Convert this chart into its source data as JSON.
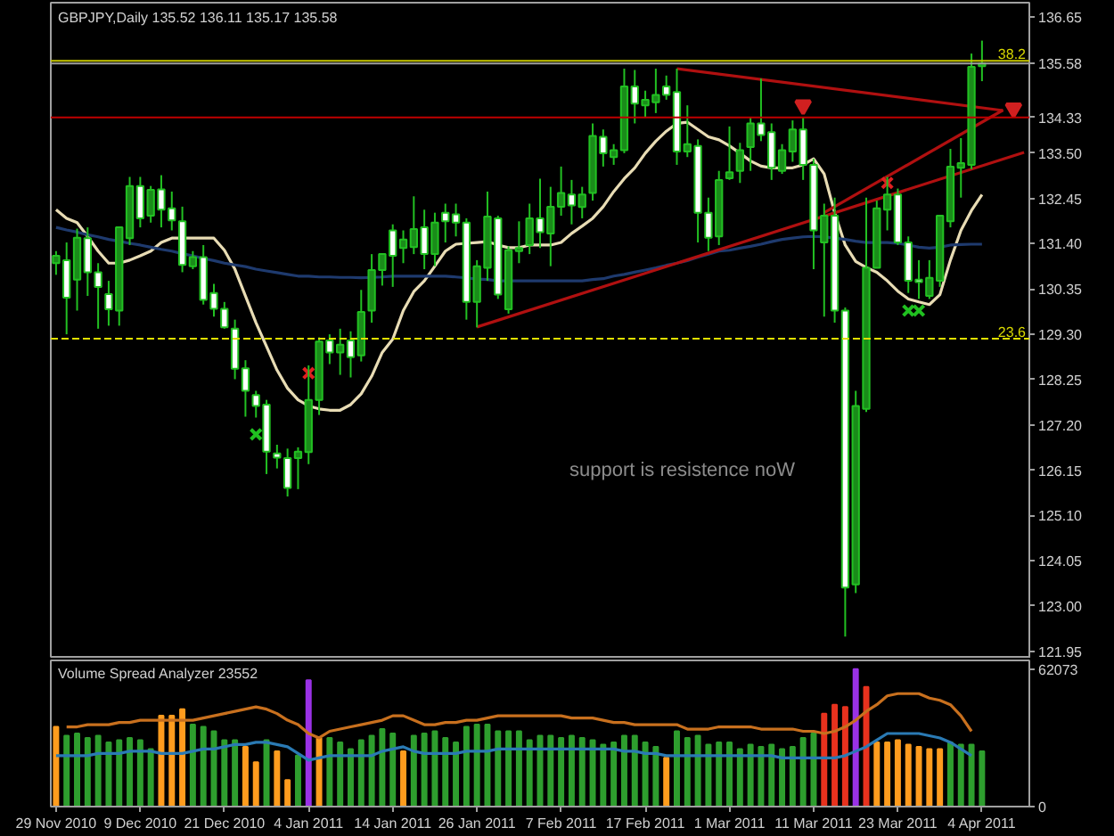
{
  "chart_data": [
    {
      "type": "candlestick",
      "title": "GBPJPY,Daily 135.52 136.11 135.17 135.58",
      "categories": [
        null,
        null,
        null,
        null,
        null,
        null,
        null,
        null,
        null,
        null,
        null,
        null,
        null,
        null,
        null,
        null,
        null,
        null,
        null,
        null,
        null,
        null,
        null,
        null,
        null,
        null,
        null,
        null,
        null,
        null,
        null,
        null,
        null,
        null,
        null,
        null,
        null,
        null,
        null,
        null,
        null,
        null,
        null,
        null,
        null,
        null,
        null,
        null,
        null,
        null,
        null,
        null,
        null,
        null,
        null,
        null,
        null,
        null,
        null,
        null,
        null,
        null,
        null,
        null,
        null,
        null,
        null,
        null,
        null,
        null,
        null,
        null,
        null,
        null,
        null,
        null,
        null,
        null,
        null,
        null,
        null,
        null,
        null,
        null,
        null,
        null,
        null,
        null,
        null,
        null,
        null,
        null,
        null
      ],
      "ohlc": [
        [
          130.95,
          131.23,
          130.68,
          131.12
        ],
        [
          131.02,
          131.43,
          129.3,
          130.15
        ],
        [
          130.57,
          131.75,
          129.85,
          131.54
        ],
        [
          131.53,
          131.78,
          130.19,
          130.74
        ],
        [
          130.74,
          130.95,
          129.43,
          130.4
        ],
        [
          130.23,
          130.54,
          129.5,
          129.88
        ],
        [
          129.85,
          131.78,
          129.5,
          131.78
        ],
        [
          131.53,
          132.95,
          131.37,
          132.74
        ],
        [
          132.74,
          132.95,
          131.78,
          131.99
        ],
        [
          132.05,
          132.74,
          131.89,
          132.65
        ],
        [
          132.66,
          132.99,
          131.78,
          132.19
        ],
        [
          132.22,
          132.61,
          131.71,
          131.94
        ],
        [
          131.92,
          132.26,
          130.74,
          130.91
        ],
        [
          130.88,
          131.23,
          130.81,
          131.09
        ],
        [
          131.09,
          131.37,
          129.99,
          130.1
        ],
        [
          130.26,
          130.47,
          129.71,
          129.89
        ],
        [
          129.89,
          130.05,
          129.43,
          129.46
        ],
        [
          129.43,
          129.64,
          128.26,
          128.5
        ],
        [
          128.51,
          128.7,
          127.39,
          127.99
        ],
        [
          127.89,
          127.99,
          127.37,
          127.64
        ],
        [
          127.67,
          127.78,
          126.06,
          126.58
        ],
        [
          126.54,
          126.74,
          126.19,
          126.44
        ],
        [
          126.43,
          126.65,
          125.54,
          125.74
        ],
        [
          126.43,
          126.68,
          125.71,
          126.58
        ],
        [
          126.57,
          128.58,
          126.29,
          127.78
        ],
        [
          127.78,
          129.23,
          127.43,
          129.13
        ],
        [
          129.16,
          129.3,
          128.61,
          128.88
        ],
        [
          128.88,
          129.43,
          128.36,
          129.06
        ],
        [
          129.16,
          129.37,
          128.3,
          128.77
        ],
        [
          128.81,
          130.33,
          128.67,
          129.82
        ],
        [
          129.85,
          131.16,
          129.57,
          130.79
        ],
        [
          130.79,
          131.16,
          130.43,
          131.16
        ],
        [
          131.71,
          131.85,
          130.4,
          131.12
        ],
        [
          131.3,
          131.71,
          130.95,
          131.5
        ],
        [
          131.32,
          132.5,
          131.16,
          131.74
        ],
        [
          131.78,
          132.19,
          130.81,
          131.16
        ],
        [
          131.16,
          132.12,
          130.88,
          131.89
        ],
        [
          132.12,
          132.33,
          131.43,
          131.92
        ],
        [
          132.08,
          132.33,
          131.57,
          131.89
        ],
        [
          131.89,
          131.99,
          129.64,
          130.05
        ],
        [
          130.05,
          131.02,
          129.46,
          130.88
        ],
        [
          130.84,
          132.61,
          130.54,
          132.03
        ],
        [
          131.99,
          132.05,
          130.12,
          130.22
        ],
        [
          129.88,
          131.34,
          129.78,
          131.25
        ],
        [
          131.23,
          131.92,
          130.95,
          131.3
        ],
        [
          131.37,
          132.33,
          131.16,
          131.99
        ],
        [
          131.99,
          132.91,
          131.3,
          131.67
        ],
        [
          131.64,
          132.72,
          130.88,
          132.26
        ],
        [
          132.26,
          133.19,
          132.05,
          132.58
        ],
        [
          132.54,
          132.88,
          131.85,
          132.29
        ],
        [
          132.25,
          132.72,
          131.99,
          132.54
        ],
        [
          132.58,
          134.19,
          132.4,
          133.9
        ],
        [
          133.88,
          134.05,
          133.19,
          133.5
        ],
        [
          133.41,
          133.71,
          133.23,
          133.57
        ],
        [
          133.57,
          135.46,
          133.5,
          135.05
        ],
        [
          135.05,
          135.43,
          134.19,
          134.65
        ],
        [
          134.61,
          134.95,
          134.33,
          134.74
        ],
        [
          134.68,
          135.46,
          134.43,
          134.85
        ],
        [
          135.05,
          135.3,
          134.74,
          134.85
        ],
        [
          134.92,
          135.46,
          133.23,
          133.54
        ],
        [
          133.54,
          134.61,
          133.41,
          133.71
        ],
        [
          133.67,
          133.82,
          131.43,
          132.12
        ],
        [
          132.12,
          132.47,
          131.23,
          131.54
        ],
        [
          131.57,
          133.09,
          131.37,
          132.88
        ],
        [
          132.92,
          134.12,
          132.88,
          133.06
        ],
        [
          133.09,
          133.74,
          132.81,
          133.57
        ],
        [
          133.64,
          134.33,
          133.09,
          134.19
        ],
        [
          134.19,
          135.23,
          133.78,
          133.92
        ],
        [
          133.99,
          134.19,
          132.88,
          133.16
        ],
        [
          133.09,
          133.71,
          133.02,
          133.57
        ],
        [
          133.54,
          134.26,
          133.3,
          134.05
        ],
        [
          134.05,
          134.33,
          132.88,
          133.23
        ],
        [
          133.23,
          133.37,
          130.81,
          131.71
        ],
        [
          131.43,
          132.33,
          129.71,
          132.05
        ],
        [
          132.05,
          132.47,
          129.57,
          129.85
        ],
        [
          129.85,
          129.92,
          122.29,
          123.43
        ],
        [
          123.5,
          127.99,
          123.3,
          127.64
        ],
        [
          127.57,
          132.47,
          127.5,
          130.84
        ],
        [
          130.84,
          132.4,
          130.84,
          132.22
        ],
        [
          132.19,
          132.95,
          131.71,
          132.54
        ],
        [
          132.54,
          132.68,
          131.37,
          131.43
        ],
        [
          131.43,
          131.57,
          130.26,
          130.54
        ],
        [
          130.57,
          131.02,
          130.12,
          130.51
        ],
        [
          130.19,
          131.02,
          130.12,
          130.61
        ],
        [
          130.54,
          132.05,
          130.4,
          132.05
        ],
        [
          131.92,
          133.6,
          131.78,
          133.19
        ],
        [
          133.16,
          133.85,
          132.47,
          133.27
        ],
        [
          133.23,
          135.81,
          133.13,
          135.5
        ],
        [
          135.52,
          136.11,
          135.17,
          135.58
        ],
        null,
        null,
        null,
        null
      ],
      "colors": [
        "#1a8c1a",
        "#ffffff",
        "#1a8c1a",
        "#ffffff",
        "#ffffff",
        "#ffffff",
        "#1a8c1a",
        "#1a8c1a",
        "#ffffff",
        "#1a8c1a",
        "#ffffff",
        "#ffffff",
        "#ffffff",
        "#1a8c1a",
        "#ffffff",
        "#ffffff",
        "#ffffff",
        "#ffffff",
        "#ffffff",
        "#ffffff",
        "#ffffff",
        "#ffffff",
        "#ffffff",
        "#1a8c1a",
        "#1a8c1a",
        "#1a8c1a",
        "#ffffff",
        "#1a8c1a",
        "#ffffff",
        "#1a8c1a",
        "#1a8c1a",
        "#1a8c1a",
        "#ffffff",
        "#1a8c1a",
        "#1a8c1a",
        "#ffffff",
        "#1a8c1a",
        "#ffffff",
        "#ffffff",
        "#ffffff",
        "#1a8c1a",
        "#1a8c1a",
        "#ffffff",
        "#1a8c1a",
        "#1a8c1a",
        "#1a8c1a",
        "#ffffff",
        "#1a8c1a",
        "#1a8c1a",
        "#ffffff",
        "#1a8c1a",
        "#1a8c1a",
        "#ffffff",
        "#1a8c1a",
        "#1a8c1a",
        "#ffffff",
        "#1a8c1a",
        "#1a8c1a",
        "#ffffff",
        "#ffffff",
        "#1a8c1a",
        "#ffffff",
        "#ffffff",
        "#1a8c1a",
        "#1a8c1a",
        "#1a8c1a",
        "#1a8c1a",
        "#ffffff",
        "#ffffff",
        "#1a8c1a",
        "#1a8c1a",
        "#ffffff",
        "#ffffff",
        "#1a8c1a",
        "#ffffff",
        "#ffffff",
        "#1a8c1a",
        "#1a8c1a",
        "#1a8c1a",
        "#1a8c1a",
        "#ffffff",
        "#ffffff",
        "#ffffff",
        "#1a8c1a",
        "#1a8c1a",
        "#1a8c1a",
        "#1a8c1a",
        "#1a8c1a",
        "#1a8c1a",
        null,
        null,
        null,
        null
      ],
      "series": [
        {
          "type": "line",
          "color": "#e8dcb4",
          "values": [
            132.19,
            131.99,
            131.89,
            131.57,
            131.23,
            130.95,
            130.95,
            131.02,
            131.12,
            131.23,
            131.43,
            131.53,
            131.53,
            131.53,
            131.53,
            131.53,
            131.25,
            130.81,
            130.19,
            129.57,
            129.02,
            128.47,
            128.05,
            127.78,
            127.64,
            127.57,
            127.54,
            127.54,
            127.67,
            127.92,
            128.33,
            128.88,
            129.19,
            129.85,
            130.29,
            130.54,
            130.88,
            131.23,
            131.39,
            131.41,
            131.43,
            131.45,
            131.37,
            131.31,
            131.31,
            131.37,
            131.37,
            131.37,
            131.43,
            131.64,
            131.81,
            131.99,
            132.26,
            132.61,
            132.91,
            133.16,
            133.5,
            133.78,
            134.01,
            134.19,
            134.22,
            134.05,
            133.88,
            133.81,
            133.67,
            133.5,
            133.32,
            133.2,
            133.16,
            133.16,
            133.16,
            133.23,
            133.37,
            133.02,
            132.12,
            131.37,
            130.99,
            130.85,
            130.74,
            130.54,
            130.3,
            130.12,
            130.05,
            129.99,
            130.22,
            131.02,
            131.71,
            132.17,
            132.54,
            null,
            null,
            null,
            null
          ]
        },
        {
          "type": "line",
          "color": "#1e3a6e",
          "values": [
            131.78,
            131.72,
            131.67,
            131.61,
            131.56,
            131.5,
            131.46,
            131.41,
            131.37,
            131.32,
            131.27,
            131.23,
            131.17,
            131.12,
            131.06,
            131.01,
            130.95,
            130.91,
            130.87,
            130.81,
            130.77,
            130.73,
            130.69,
            130.65,
            130.65,
            130.63,
            130.63,
            130.62,
            130.62,
            130.61,
            130.62,
            130.63,
            130.65,
            130.65,
            130.65,
            130.65,
            130.65,
            130.65,
            130.63,
            130.61,
            130.58,
            130.57,
            130.54,
            130.54,
            130.54,
            130.54,
            130.54,
            130.54,
            130.54,
            130.54,
            130.54,
            130.57,
            130.59,
            130.65,
            130.69,
            130.74,
            130.79,
            130.84,
            130.9,
            130.95,
            131.01,
            131.09,
            131.16,
            131.23,
            131.25,
            131.3,
            131.34,
            131.39,
            131.45,
            131.5,
            131.53,
            131.56,
            131.57,
            131.56,
            131.53,
            131.5,
            131.46,
            131.43,
            131.43,
            131.43,
            131.41,
            131.37,
            131.32,
            131.3,
            131.32,
            131.37,
            131.38,
            131.39,
            131.39,
            null,
            null,
            null,
            null
          ]
        },
        {
          "type": "line",
          "color": "#b01010",
          "values": [
            null,
            null,
            null,
            null,
            null,
            null,
            null,
            null,
            null,
            null,
            null,
            null,
            null,
            null,
            null,
            null,
            null,
            null,
            null,
            null,
            null,
            null,
            null,
            null,
            null,
            null,
            null,
            null,
            null,
            null,
            null,
            null,
            null,
            null,
            null,
            null,
            null,
            null,
            null,
            null,
            129.47,
            null,
            null,
            null,
            null,
            null,
            null,
            null,
            null,
            null,
            null,
            null,
            null,
            null,
            null,
            null,
            null,
            null,
            null,
            null,
            null,
            null,
            null,
            null,
            null,
            null,
            null,
            null,
            null,
            null,
            null,
            null,
            null,
            null,
            null,
            null,
            null,
            null,
            null,
            null,
            null,
            null,
            null,
            null,
            null,
            null,
            null,
            null,
            null,
            null,
            null,
            null,
            133.52
          ]
        },
        {
          "type": "line",
          "color": "#b01010",
          "values": [
            null,
            null,
            null,
            null,
            null,
            null,
            null,
            null,
            null,
            null,
            null,
            null,
            null,
            null,
            null,
            null,
            null,
            null,
            null,
            null,
            null,
            null,
            null,
            null,
            null,
            null,
            null,
            null,
            null,
            null,
            null,
            null,
            null,
            null,
            null,
            null,
            null,
            null,
            null,
            null,
            null,
            null,
            null,
            null,
            null,
            null,
            null,
            null,
            null,
            null,
            null,
            null,
            null,
            null,
            null,
            null,
            null,
            null,
            null,
            135.46,
            null,
            null,
            null,
            null,
            null,
            null,
            null,
            null,
            null,
            null,
            null,
            null,
            null,
            null,
            null,
            null,
            null,
            null,
            null,
            null,
            null,
            null,
            null,
            null,
            null,
            null,
            null,
            null,
            null,
            null,
            134.49,
            null,
            null
          ]
        },
        {
          "type": "line",
          "color": "#b01010",
          "values": [
            null,
            null,
            null,
            null,
            null,
            null,
            null,
            null,
            null,
            null,
            null,
            null,
            null,
            null,
            null,
            null,
            null,
            null,
            null,
            null,
            null,
            null,
            null,
            null,
            null,
            null,
            null,
            null,
            null,
            null,
            null,
            null,
            null,
            null,
            null,
            null,
            null,
            null,
            null,
            null,
            null,
            null,
            null,
            null,
            null,
            null,
            null,
            null,
            null,
            null,
            null,
            null,
            null,
            null,
            null,
            null,
            null,
            null,
            null,
            null,
            null,
            null,
            null,
            null,
            null,
            null,
            null,
            null,
            null,
            null,
            null,
            null,
            null,
            132.12,
            null,
            null,
            null,
            null,
            null,
            null,
            null,
            null,
            null,
            null,
            null,
            null,
            null,
            null,
            null,
            null,
            134.5,
            null,
            null
          ]
        },
        {
          "type": "scatter",
          "marker": "cross",
          "color": "#e02020",
          "values": [
            null,
            null,
            null,
            null,
            null,
            null,
            null,
            null,
            null,
            null,
            null,
            null,
            null,
            null,
            null,
            null,
            null,
            null,
            null,
            null,
            null,
            null,
            null,
            null,
            128.4,
            null,
            null,
            null,
            null,
            null,
            null,
            null,
            null,
            null,
            null,
            null,
            null,
            null,
            null,
            null,
            null,
            null,
            null,
            null,
            null,
            null,
            null,
            null,
            null,
            null,
            null,
            null,
            null,
            null,
            null,
            null,
            null,
            null,
            null,
            null,
            null,
            null,
            null,
            null,
            null,
            null,
            null,
            null,
            null,
            null,
            null,
            null,
            null,
            null,
            null,
            null,
            null,
            null,
            null,
            132.81,
            null,
            null,
            null,
            null,
            null,
            null,
            null,
            null,
            null,
            null,
            null,
            null,
            null
          ]
        },
        {
          "type": "scatter",
          "marker": "cross",
          "color": "#20c020",
          "values": [
            null,
            null,
            null,
            null,
            null,
            null,
            null,
            null,
            null,
            null,
            null,
            null,
            null,
            null,
            null,
            null,
            null,
            null,
            null,
            126.98,
            null,
            null,
            null,
            null,
            null,
            null,
            null,
            null,
            null,
            null,
            null,
            null,
            null,
            null,
            null,
            null,
            null,
            null,
            null,
            null,
            null,
            null,
            null,
            null,
            null,
            null,
            null,
            null,
            null,
            null,
            null,
            null,
            null,
            null,
            null,
            null,
            null,
            null,
            null,
            null,
            null,
            null,
            null,
            null,
            null,
            null,
            null,
            null,
            null,
            null,
            null,
            null,
            null,
            null,
            null,
            null,
            null,
            null,
            null,
            null,
            null,
            129.85,
            129.85,
            null,
            null,
            null,
            null,
            null,
            null,
            null,
            null,
            null,
            null
          ]
        },
        {
          "type": "scatter",
          "marker": "triangle",
          "color": "#d02020",
          "values": [
            null,
            null,
            null,
            null,
            null,
            null,
            null,
            null,
            null,
            null,
            null,
            null,
            null,
            null,
            null,
            null,
            null,
            null,
            null,
            null,
            null,
            null,
            null,
            null,
            null,
            null,
            null,
            null,
            null,
            null,
            null,
            null,
            null,
            null,
            null,
            null,
            null,
            null,
            null,
            null,
            null,
            null,
            null,
            null,
            null,
            null,
            null,
            null,
            null,
            null,
            null,
            null,
            null,
            null,
            null,
            null,
            null,
            null,
            null,
            null,
            null,
            null,
            null,
            null,
            null,
            null,
            null,
            null,
            null,
            null,
            null,
            134.61,
            null,
            null,
            null,
            null,
            null,
            null,
            null,
            null,
            null,
            null,
            null,
            null,
            null,
            null,
            null,
            null,
            null,
            null,
            null,
            134.54,
            null
          ]
        }
      ],
      "ref_lines": [
        {
          "axis": "y",
          "value": 135.64,
          "color": "#c8c800"
        },
        {
          "axis": "y",
          "value": 135.58,
          "label": "135.58",
          "color": "#a0a0a0"
        },
        {
          "axis": "y",
          "value": 134.33,
          "label": "134.33",
          "color": "#c00000"
        },
        {
          "axis": "y",
          "value": 129.2,
          "color": "#e0e000",
          "line_style": "dashed"
        }
      ],
      "annotations": [
        "support is resistence noW",
        {
          "text": "38.2",
          "y": 135.64
        },
        {
          "text": "23.6",
          "y": 129.2
        }
      ],
      "ylim": [
        121.78,
        136.99
      ],
      "yticks": [
        121.95,
        {
          "value": 123,
          "label": "123.00"
        },
        124.05,
        {
          "value": 125.1,
          "label": "125.10"
        },
        126.15,
        {
          "value": 127.2,
          "label": "127.20"
        },
        128.25,
        {
          "value": 129.3,
          "label": "129.30"
        },
        130.35,
        {
          "value": 131.4,
          "label": "131.40"
        },
        132.45,
        {
          "value": 133.5,
          "label": "133.50"
        },
        136.65
      ]
    },
    {
      "type": "bar",
      "title": "Volume Spread Analyzer 23552",
      "categories": [
        "29 Nov 2010",
        null,
        null,
        null,
        null,
        null,
        null,
        null,
        "9 Dec 2010",
        null,
        null,
        null,
        null,
        null,
        null,
        null,
        "21 Dec 2010",
        null,
        null,
        null,
        null,
        null,
        null,
        null,
        "4 Jan 2011",
        null,
        null,
        null,
        null,
        null,
        null,
        null,
        "14 Jan 2011",
        null,
        null,
        null,
        null,
        null,
        null,
        null,
        "26 Jan 2011",
        null,
        null,
        null,
        null,
        null,
        null,
        null,
        "7 Feb 2011",
        null,
        null,
        null,
        null,
        null,
        null,
        null,
        "17 Feb 2011",
        null,
        null,
        null,
        null,
        null,
        null,
        null,
        "1 Mar 2011",
        null,
        null,
        null,
        null,
        null,
        null,
        null,
        "11 Mar 2011",
        null,
        null,
        null,
        null,
        null,
        null,
        null,
        "23 Mar 2011",
        null,
        null,
        null,
        null,
        null,
        null,
        null,
        "4 Apr 2011",
        null,
        null,
        null,
        null
      ],
      "series": [
        {
          "type": "bar",
          "values": [
            36000,
            32000,
            33000,
            31000,
            32000,
            29000,
            30000,
            31000,
            30000,
            26000,
            41000,
            41000,
            44000,
            37000,
            36000,
            34000,
            30000,
            30000,
            27000,
            20000,
            30000,
            25000,
            12000,
            23000,
            57000,
            31000,
            31000,
            29000,
            26000,
            30000,
            32000,
            35000,
            33000,
            25000,
            32000,
            33000,
            34000,
            31000,
            29000,
            36000,
            37000,
            37000,
            34000,
            34000,
            34000,
            30000,
            32000,
            32000,
            31000,
            32000,
            31000,
            30000,
            28000,
            29000,
            32000,
            32000,
            29000,
            27000,
            22000,
            34000,
            31000,
            32000,
            28000,
            29000,
            29000,
            26000,
            28000,
            27000,
            28000,
            26000,
            27000,
            31000,
            33000,
            42000,
            46000,
            45000,
            62073,
            54000,
            29000,
            29000,
            30000,
            28000,
            27000,
            26000,
            26000,
            29000,
            28000,
            28000,
            25000,
            null,
            null,
            null,
            null
          ],
          "colors": [
            "#ff9c1e",
            "#2e9e2e",
            "#2e9e2e",
            "#2e9e2e",
            "#2e9e2e",
            "#2e9e2e",
            "#2e9e2e",
            "#2e9e2e",
            "#2e9e2e",
            "#2e9e2e",
            "#ff9c1e",
            "#ff9c1e",
            "#ff9c1e",
            "#2e9e2e",
            "#2e9e2e",
            "#2e9e2e",
            "#2e9e2e",
            "#2e9e2e",
            "#ff9c1e",
            "#ff9c1e",
            "#2e9e2e",
            "#ff9c1e",
            "#ff9c1e",
            "#2e9e2e",
            "#9a32e6",
            "#ff9c1e",
            "#2e9e2e",
            "#2e9e2e",
            "#2e9e2e",
            "#2e9e2e",
            "#2e9e2e",
            "#2e9e2e",
            "#2e9e2e",
            "#ff9c1e",
            "#2e9e2e",
            "#2e9e2e",
            "#2e9e2e",
            "#2e9e2e",
            "#2e9e2e",
            "#2e9e2e",
            "#2e9e2e",
            "#2e9e2e",
            "#2e9e2e",
            "#2e9e2e",
            "#2e9e2e",
            "#2e9e2e",
            "#2e9e2e",
            "#2e9e2e",
            "#2e9e2e",
            "#2e9e2e",
            "#2e9e2e",
            "#2e9e2e",
            "#2e9e2e",
            "#2e9e2e",
            "#2e9e2e",
            "#2e9e2e",
            "#2e9e2e",
            "#2e9e2e",
            "#ff9c1e",
            "#2e9e2e",
            "#2e9e2e",
            "#2e9e2e",
            "#2e9e2e",
            "#2e9e2e",
            "#2e9e2e",
            "#2e9e2e",
            "#2e9e2e",
            "#2e9e2e",
            "#2e9e2e",
            "#2e9e2e",
            "#2e9e2e",
            "#2e9e2e",
            "#2e9e2e",
            "#e8321e",
            "#e8321e",
            "#e8321e",
            "#9a32e6",
            "#e8321e",
            "#ff9c1e",
            "#ff9c1e",
            "#ff9c1e",
            "#ff9c1e",
            "#ff9c1e",
            "#ff9c1e",
            "#ff9c1e",
            "#2e9e2e",
            "#2e9e2e",
            "#2e9e2e",
            "#2e9e2e",
            null,
            null,
            null,
            null
          ]
        },
        {
          "type": "line",
          "color": "#c8701e",
          "values": [
            null,
            36000,
            36000,
            37000,
            37000,
            37000,
            38000,
            38000,
            39000,
            39000,
            39000,
            39000,
            39000,
            39000,
            40000,
            41000,
            42000,
            43000,
            44000,
            45000,
            44000,
            42000,
            39000,
            37000,
            33000,
            31000,
            34000,
            35000,
            36000,
            37000,
            38000,
            39000,
            41000,
            41000,
            39000,
            37000,
            37000,
            38000,
            38000,
            39000,
            39000,
            40000,
            41000,
            41000,
            41000,
            41000,
            41000,
            41000,
            41000,
            40000,
            40000,
            40000,
            39000,
            38000,
            38000,
            37000,
            37000,
            37000,
            37000,
            37000,
            35000,
            35000,
            35000,
            36000,
            36000,
            36000,
            36000,
            35000,
            35000,
            35000,
            35000,
            34000,
            34000,
            33000,
            34000,
            36000,
            39000,
            43000,
            46000,
            50000,
            51000,
            51000,
            51000,
            49000,
            48000,
            46000,
            41000,
            34000,
            null,
            null,
            null,
            null,
            null
          ]
        },
        {
          "type": "line",
          "color": "#2a7ab4",
          "values": [
            23000,
            23000,
            23000,
            23000,
            24000,
            24000,
            24000,
            25000,
            25000,
            25000,
            24000,
            24000,
            24000,
            25000,
            26000,
            26000,
            27000,
            28000,
            28000,
            29000,
            29000,
            28000,
            27000,
            24000,
            21000,
            22000,
            23000,
            23000,
            23000,
            23000,
            23000,
            25000,
            26000,
            27000,
            25000,
            24000,
            24000,
            24000,
            24000,
            25000,
            25000,
            25000,
            26000,
            26000,
            26000,
            26000,
            26000,
            26000,
            26000,
            26000,
            26000,
            26000,
            26000,
            26000,
            25000,
            25000,
            24000,
            24000,
            23000,
            23000,
            23000,
            23000,
            23000,
            23000,
            23000,
            23000,
            23000,
            23000,
            23000,
            22000,
            22000,
            22000,
            22000,
            22000,
            22000,
            23000,
            25000,
            27000,
            30000,
            33000,
            33000,
            33000,
            33000,
            32000,
            31000,
            29000,
            26000,
            23000,
            null,
            null,
            null,
            null,
            null
          ]
        }
      ],
      "ylim": [
        0,
        66000
      ],
      "yticks": [
        0,
        62073
      ]
    }
  ]
}
